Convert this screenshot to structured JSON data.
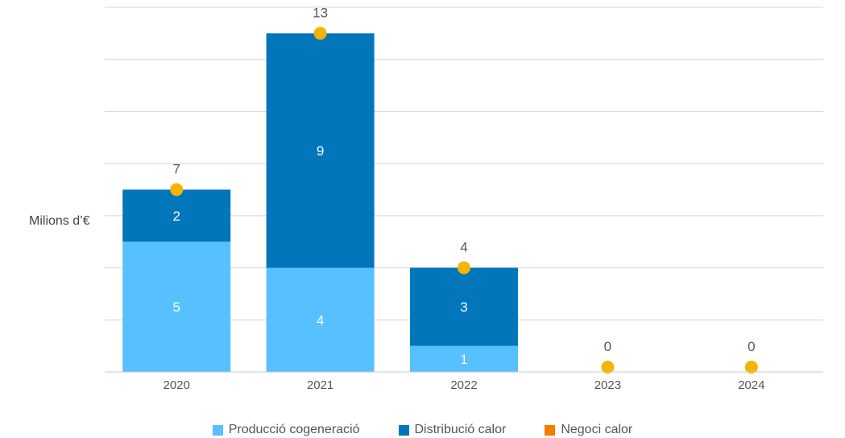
{
  "chart_data": {
    "type": "bar",
    "stacked": true,
    "ylabel": "Milions d’€",
    "ylim": [
      0,
      14
    ],
    "grid": true,
    "legend_position": "bottom",
    "categories": [
      "2020",
      "2021",
      "2022",
      "2023",
      "2024"
    ],
    "series": [
      {
        "name": "Producció cogeneració",
        "color": "#57c0ff",
        "values": [
          5,
          4,
          1,
          0,
          0
        ]
      },
      {
        "name": "Distribució calor",
        "color": "#0176ba",
        "values": [
          2,
          9,
          3,
          0,
          0
        ]
      },
      {
        "name": "Negoci calor",
        "color": "#f57c00",
        "values": [
          0,
          0,
          0,
          0,
          0
        ]
      }
    ],
    "totals": [
      7,
      13,
      4,
      0,
      0
    ],
    "total_marker_color": "#f5b400"
  }
}
